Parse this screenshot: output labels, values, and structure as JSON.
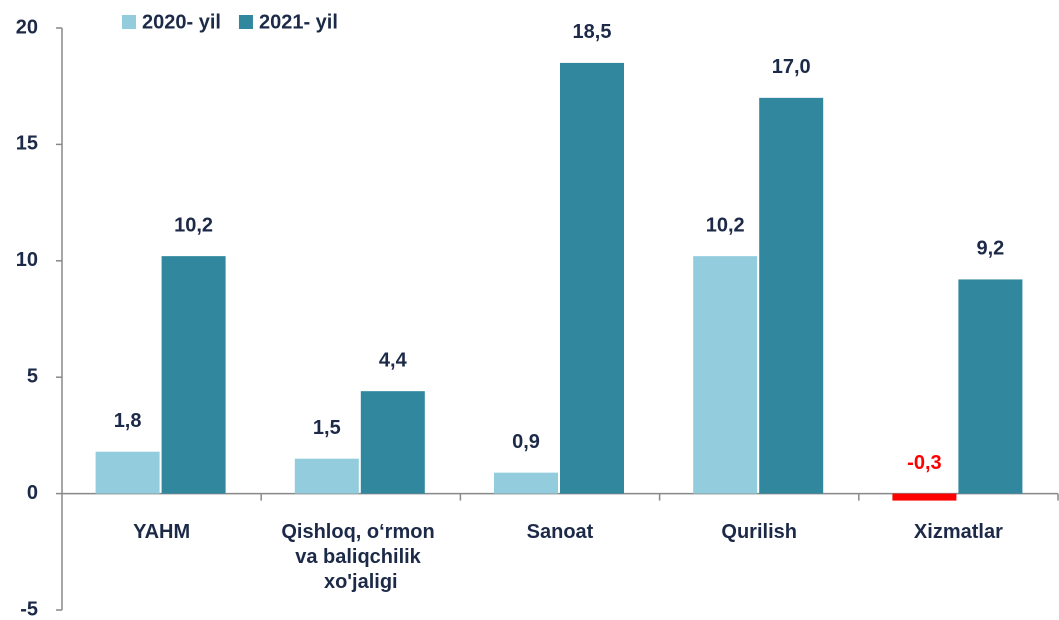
{
  "chart_data": {
    "type": "bar",
    "categories": [
      "YAHM",
      "Qishloq, o‘rmon va baliqchilik xo'jaligi",
      "Sanoat",
      "Qurilish",
      "Xizmatlar"
    ],
    "series": [
      {
        "name": "2020- yil",
        "color": "#93cddd",
        "values": [
          1.8,
          1.5,
          0.9,
          10.2,
          -0.3
        ],
        "value_labels": [
          "1,8",
          "1,5",
          "0,9",
          "10,2",
          "-0,3"
        ]
      },
      {
        "name": "2021- yil",
        "color": "#31879e",
        "values": [
          10.2,
          4.4,
          18.5,
          17.0,
          9.2
        ],
        "value_labels": [
          "10,2",
          "4,4",
          "18,5",
          "17,0",
          "9,2"
        ]
      }
    ],
    "negative_color": "#ff0000",
    "ylim": [
      -5,
      20
    ],
    "yticks": [
      -5,
      0,
      5,
      10,
      15,
      20
    ],
    "grid": false,
    "legend": "top"
  }
}
